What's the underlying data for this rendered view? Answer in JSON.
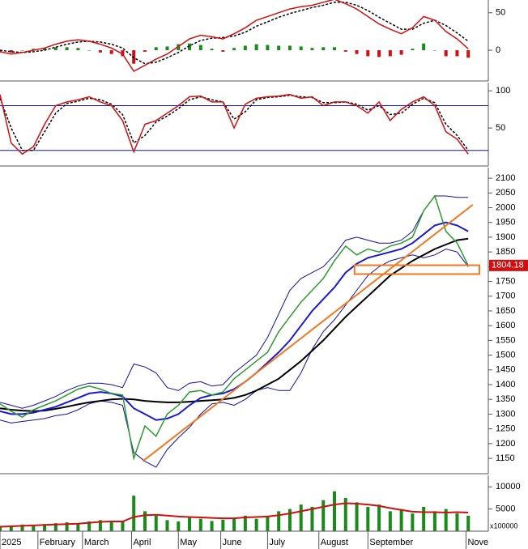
{
  "chart_data": [
    {
      "type": "line",
      "ylim": [
        -41,
        67
      ],
      "yticks": [
        0,
        50
      ],
      "pos_color": "#1a8a1a",
      "neg_color": "#d01010",
      "x": [
        0,
        5,
        10,
        15,
        20,
        25,
        30,
        35,
        40,
        45,
        50,
        55,
        60,
        65,
        70,
        75,
        80,
        85,
        90,
        95,
        100,
        105,
        110,
        115,
        120,
        125,
        130,
        135,
        140,
        145,
        150,
        155,
        160,
        165,
        170,
        175,
        180,
        185,
        190,
        195,
        200,
        205,
        210
      ],
      "xlim": [
        0,
        219
      ],
      "series": [
        {
          "kind": "bar",
          "values": [
            -2,
            -3,
            0,
            2,
            3,
            4,
            4,
            3,
            0,
            -3,
            -5,
            -8,
            -18,
            -2,
            4,
            5,
            8,
            9,
            7,
            2,
            -2,
            3,
            6,
            8,
            7,
            6,
            6,
            5,
            3,
            4,
            4,
            -2,
            -5,
            -8,
            -9,
            -8,
            -6,
            2,
            9,
            0,
            -8,
            -8,
            -10
          ]
        },
        {
          "kind": "line",
          "style": "dashed",
          "color": "#000000",
          "values": [
            0,
            -2,
            -3,
            -2,
            0,
            4,
            8,
            11,
            12,
            11,
            8,
            3,
            -10,
            -18,
            -16,
            -10,
            -3,
            6,
            13,
            16,
            17,
            19,
            24,
            32,
            38,
            44,
            49,
            53,
            57,
            60,
            64,
            64,
            60,
            53,
            44,
            36,
            28,
            28,
            36,
            40,
            33,
            23,
            12
          ]
        },
        {
          "kind": "line",
          "style": "solid",
          "color": "#d01010",
          "values": [
            -2,
            -5,
            -3,
            0,
            3,
            8,
            12,
            14,
            12,
            8,
            3,
            -5,
            -28,
            -20,
            -12,
            -5,
            5,
            15,
            20,
            18,
            15,
            22,
            30,
            40,
            45,
            50,
            55,
            58,
            60,
            64,
            68,
            62,
            55,
            45,
            35,
            28,
            22,
            30,
            45,
            40,
            25,
            15,
            2
          ]
        }
      ]
    },
    {
      "type": "line",
      "ylim": [
        -1,
        111
      ],
      "yticks": [
        50,
        100
      ],
      "levels": [
        80,
        20
      ],
      "level_color": "#1010c0",
      "x": [
        0,
        5,
        10,
        15,
        20,
        25,
        30,
        35,
        40,
        45,
        50,
        55,
        60,
        65,
        70,
        75,
        80,
        85,
        90,
        95,
        100,
        105,
        110,
        115,
        120,
        125,
        130,
        135,
        140,
        145,
        150,
        155,
        160,
        165,
        170,
        175,
        180,
        185,
        190,
        195,
        200,
        205,
        210
      ],
      "xlim": [
        0,
        219
      ],
      "series": [
        {
          "kind": "line",
          "style": "dashed",
          "color": "#000000",
          "values": [
            90,
            50,
            20,
            20,
            45,
            70,
            83,
            86,
            90,
            88,
            82,
            68,
            30,
            40,
            58,
            66,
            76,
            88,
            92,
            88,
            85,
            62,
            72,
            88,
            91,
            92,
            94,
            92,
            91,
            84,
            84,
            85,
            82,
            74,
            80,
            68,
            70,
            82,
            90,
            84,
            55,
            40,
            20
          ]
        },
        {
          "kind": "line",
          "style": "solid",
          "color": "#d01010",
          "values": [
            95,
            30,
            15,
            25,
            55,
            80,
            85,
            88,
            92,
            85,
            80,
            60,
            18,
            55,
            60,
            70,
            80,
            92,
            93,
            85,
            85,
            50,
            82,
            90,
            92,
            93,
            95,
            90,
            92,
            80,
            85,
            85,
            80,
            70,
            85,
            60,
            75,
            85,
            92,
            80,
            45,
            35,
            15
          ]
        }
      ]
    },
    {
      "type": "line",
      "ylim": [
        1098,
        2136
      ],
      "yticks": [
        1150,
        1200,
        1250,
        1300,
        1350,
        1400,
        1450,
        1500,
        1550,
        1600,
        1650,
        1700,
        1750,
        1800,
        1850,
        1900,
        1950,
        2000,
        2050,
        2100
      ],
      "x": [
        0,
        5,
        10,
        15,
        20,
        25,
        30,
        35,
        40,
        45,
        50,
        55,
        60,
        65,
        70,
        75,
        80,
        85,
        90,
        95,
        100,
        105,
        110,
        115,
        120,
        125,
        130,
        135,
        140,
        145,
        150,
        155,
        160,
        165,
        170,
        175,
        180,
        185,
        190,
        195,
        200,
        205,
        210
      ],
      "xlim": [
        0,
        219
      ],
      "series": [
        {
          "kind": "line",
          "width": 1,
          "color": "#1010a0",
          "values": [
            1340,
            1330,
            1320,
            1330,
            1345,
            1360,
            1380,
            1395,
            1405,
            1405,
            1400,
            1390,
            1470,
            1460,
            1440,
            1390,
            1380,
            1405,
            1410,
            1395,
            1400,
            1440,
            1470,
            1500,
            1560,
            1640,
            1720,
            1760,
            1780,
            1800,
            1840,
            1890,
            1900,
            1890,
            1880,
            1880,
            1890,
            1920,
            1990,
            2040,
            2040,
            2035,
            2035
          ]
        },
        {
          "kind": "line",
          "width": 1,
          "color": "#1010a0",
          "values": [
            1280,
            1270,
            1275,
            1280,
            1285,
            1295,
            1300,
            1315,
            1335,
            1345,
            1340,
            1330,
            1170,
            1140,
            1120,
            1180,
            1220,
            1255,
            1300,
            1335,
            1340,
            1330,
            1350,
            1380,
            1390,
            1380,
            1380,
            1440,
            1520,
            1580,
            1620,
            1670,
            1720,
            1770,
            1800,
            1820,
            1830,
            1840,
            1830,
            1840,
            1860,
            1850,
            1800
          ]
        },
        {
          "kind": "line",
          "width": 2,
          "color": "#000000",
          "values": [
            1320,
            1315,
            1312,
            1310,
            1312,
            1318,
            1325,
            1333,
            1340,
            1345,
            1350,
            1352,
            1350,
            1345,
            1342,
            1340,
            1340,
            1342,
            1345,
            1347,
            1350,
            1355,
            1365,
            1380,
            1400,
            1420,
            1450,
            1480,
            1515,
            1550,
            1590,
            1630,
            1665,
            1700,
            1735,
            1770,
            1795,
            1820,
            1840,
            1860,
            1875,
            1890,
            1895
          ]
        },
        {
          "kind": "line",
          "width": 2,
          "color": "#1a1ad0",
          "values": [
            1310,
            1300,
            1300,
            1305,
            1315,
            1325,
            1340,
            1355,
            1370,
            1375,
            1370,
            1360,
            1320,
            1300,
            1280,
            1285,
            1300,
            1330,
            1355,
            1365,
            1370,
            1385,
            1410,
            1440,
            1475,
            1510,
            1550,
            1600,
            1650,
            1690,
            1730,
            1780,
            1810,
            1830,
            1840,
            1850,
            1860,
            1880,
            1910,
            1940,
            1950,
            1940,
            1920
          ]
        },
        {
          "kind": "line",
          "width": 1.5,
          "color": "#2e9a2e",
          "values": [
            1335,
            1310,
            1290,
            1315,
            1330,
            1345,
            1365,
            1385,
            1395,
            1385,
            1370,
            1365,
            1150,
            1260,
            1225,
            1300,
            1330,
            1375,
            1380,
            1365,
            1375,
            1420,
            1450,
            1480,
            1510,
            1580,
            1630,
            1680,
            1720,
            1760,
            1820,
            1870,
            1840,
            1860,
            1850,
            1870,
            1880,
            1900,
            1990,
            2040,
            1920,
            1880,
            1804
          ]
        }
      ],
      "trendline": {
        "x": [
          64,
          212
        ],
        "values": [
          1140,
          2010
        ],
        "color": "#f07820"
      },
      "zone": {
        "x": [
          159,
          215
        ],
        "values": [
          1775,
          1805
        ],
        "color": "#f07820"
      },
      "last_price": 1804.18,
      "last_color": "#d01010"
    },
    {
      "type": "bar",
      "ylim": [
        0,
        12600
      ],
      "yticks": [
        5000,
        10000
      ],
      "y_unit": "x100000",
      "bar_color": "#1a8a1a",
      "x": [
        0,
        5,
        10,
        15,
        20,
        25,
        30,
        35,
        40,
        45,
        50,
        55,
        60,
        65,
        70,
        75,
        80,
        85,
        90,
        95,
        100,
        105,
        110,
        115,
        120,
        125,
        130,
        135,
        140,
        145,
        150,
        155,
        160,
        165,
        170,
        175,
        180,
        185,
        190,
        195,
        200,
        205,
        210
      ],
      "xlim": [
        0,
        219
      ],
      "xticks": [
        {
          "value": 0,
          "label": "2025"
        },
        {
          "value": 17,
          "label": "February"
        },
        {
          "value": 37,
          "label": "March"
        },
        {
          "value": 59,
          "label": "April"
        },
        {
          "value": 80,
          "label": "May"
        },
        {
          "value": 99,
          "label": "June"
        },
        {
          "value": 120,
          "label": "July"
        },
        {
          "value": 143,
          "label": "August"
        },
        {
          "value": 165,
          "label": "September"
        },
        {
          "value": 209,
          "label": "Nove"
        }
      ],
      "series": [
        {
          "kind": "bar",
          "values": [
            1200,
            1300,
            1500,
            1400,
            1600,
            1800,
            2000,
            1700,
            2200,
            2500,
            2000,
            2200,
            8000,
            4500,
            3500,
            2500,
            2200,
            3000,
            2800,
            2300,
            2600,
            3000,
            3500,
            2800,
            3200,
            4500,
            5000,
            6000,
            5500,
            7000,
            9000,
            7500,
            6500,
            5500,
            6000,
            4500,
            5000,
            4000,
            5500,
            4500,
            5000,
            4000,
            3500
          ]
        },
        {
          "kind": "line",
          "width": 2,
          "color": "#d01010",
          "values": [
            1000,
            1100,
            1200,
            1300,
            1400,
            1500,
            1600,
            1700,
            1900,
            2100,
            2200,
            2200,
            3200,
            3600,
            3700,
            3500,
            3300,
            3200,
            3100,
            3000,
            2900,
            2900,
            3100,
            3200,
            3300,
            3600,
            4000,
            4500,
            5000,
            5500,
            6000,
            6300,
            6200,
            6000,
            5700,
            5200,
            4800,
            4400,
            4300,
            4300,
            4200,
            4300,
            4200
          ]
        }
      ]
    }
  ]
}
